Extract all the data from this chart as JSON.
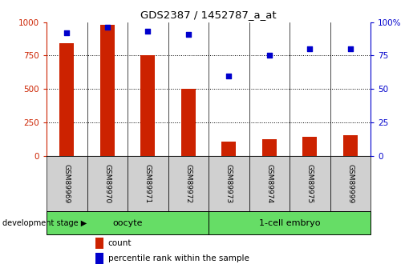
{
  "title": "GDS2387 / 1452787_a_at",
  "categories": [
    "GSM89969",
    "GSM89970",
    "GSM89971",
    "GSM89972",
    "GSM89973",
    "GSM89974",
    "GSM89975",
    "GSM89999"
  ],
  "counts": [
    840,
    980,
    750,
    500,
    110,
    125,
    145,
    155
  ],
  "percentiles": [
    92,
    96,
    93,
    91,
    60,
    75,
    80,
    80
  ],
  "bar_color": "#cc2200",
  "dot_color": "#0000cc",
  "ylim_left": [
    0,
    1000
  ],
  "ylim_right": [
    0,
    100
  ],
  "yticks_left": [
    0,
    250,
    500,
    750,
    1000
  ],
  "yticks_right": [
    0,
    25,
    50,
    75,
    100
  ],
  "ylabel_left_color": "#cc2200",
  "ylabel_right_color": "#0000cc",
  "bg_color": "#ffffff",
  "bar_width": 0.35,
  "dev_stage_label": "development stage",
  "legend_count_label": "count",
  "legend_pct_label": "percentile rank within the sample",
  "tick_label_bg": "#d0d0d0",
  "oocyte_label": "oocyte",
  "embryo_label": "1-cell embryo",
  "green_color": "#66dd66"
}
